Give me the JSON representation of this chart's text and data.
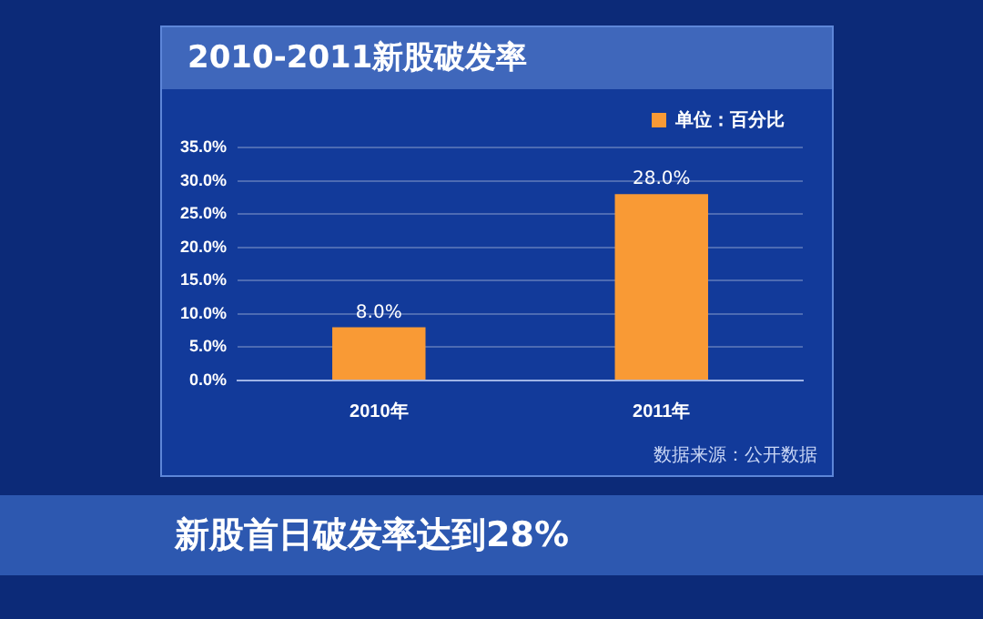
{
  "chart_data": {
    "type": "bar",
    "title": "2010-2011新股破发率",
    "categories": [
      "2010年",
      "2011年"
    ],
    "series": [
      {
        "name": "单位：百分比",
        "color": "#f99a35",
        "values": [
          8,
          28
        ]
      }
    ],
    "value_labels": [
      "8.0%",
      "28.0%"
    ],
    "ylim": [
      0,
      35
    ],
    "yticks": [
      {
        "value": 0,
        "label": "0.0%"
      },
      {
        "value": 5,
        "label": "5.0%"
      },
      {
        "value": 10,
        "label": "10.0%"
      },
      {
        "value": 15,
        "label": "15.0%"
      },
      {
        "value": 20,
        "label": "20.0%"
      },
      {
        "value": 25,
        "label": "25.0%"
      },
      {
        "value": 30,
        "label": "30.0%"
      },
      {
        "value": 35,
        "label": "35.0%"
      }
    ],
    "grid": "y",
    "legend": "top right",
    "annotations": [
      "数据来源：公开数据",
      "新股首日破发率达到28%"
    ]
  }
}
